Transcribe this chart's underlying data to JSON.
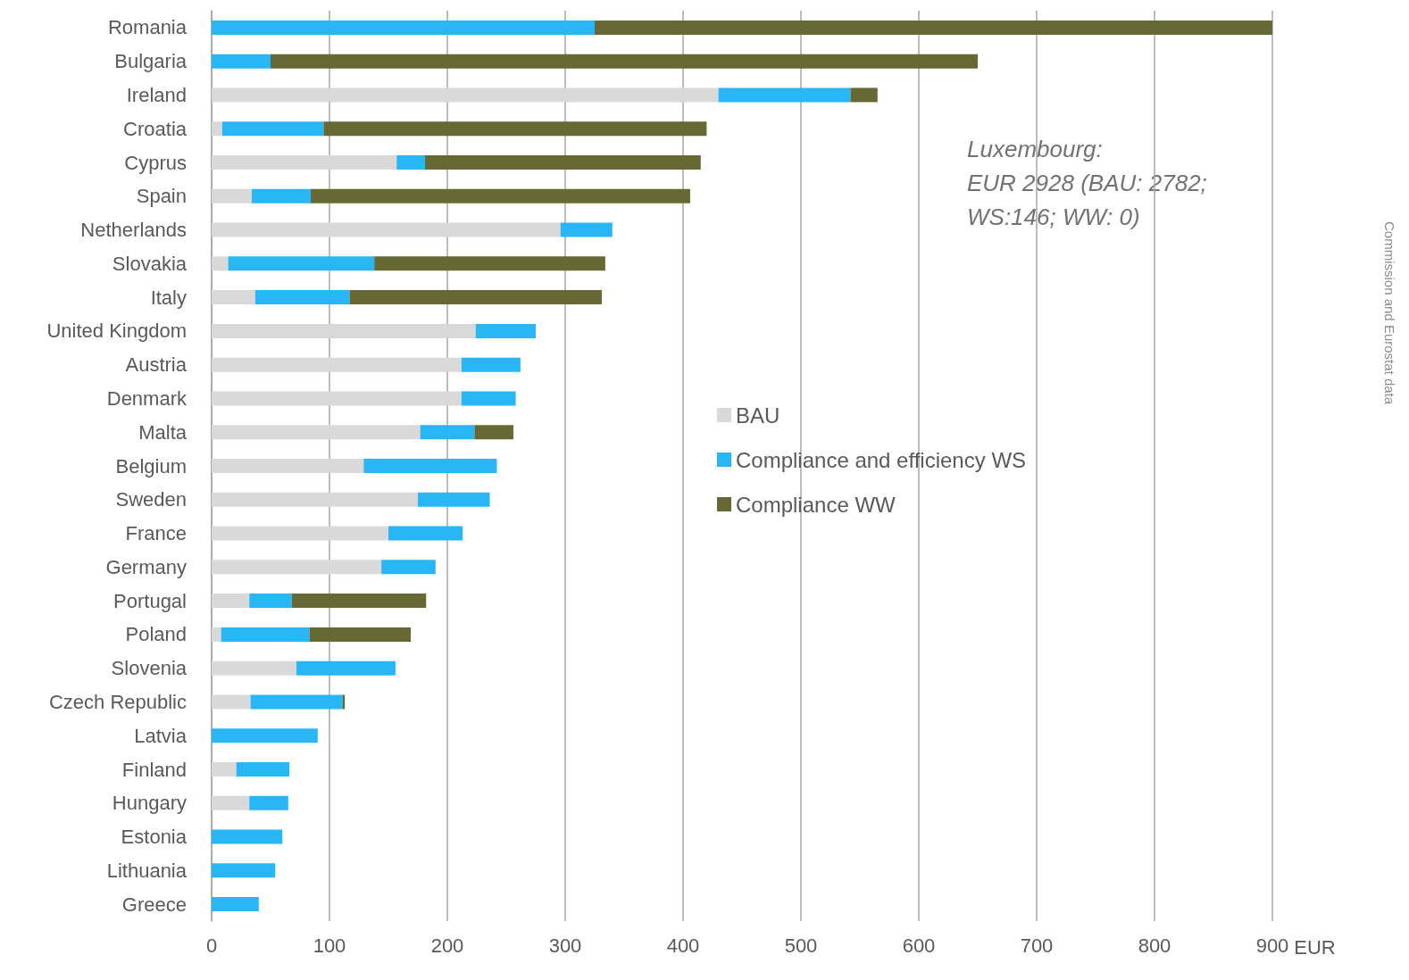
{
  "chart_data": {
    "type": "bar",
    "orientation": "horizontal",
    "stacked": true,
    "xlabel": "EUR",
    "categories": [
      "Romania",
      "Bulgaria",
      "Ireland",
      "Croatia",
      "Cyprus",
      "Spain",
      "Netherlands",
      "Slovakia",
      "Italy",
      "United Kingdom",
      "Austria",
      "Denmark",
      "Malta",
      "Belgium",
      "Sweden",
      "France",
      "Germany",
      "Portugal",
      "Poland",
      "Slovenia",
      "Czech Republic",
      "Latvia",
      "Finland",
      "Hungary",
      "Estonia",
      "Lithuania",
      "Greece"
    ],
    "series": [
      {
        "name": "BAU",
        "color": "#d9d9d9",
        "values": [
          0,
          0,
          430,
          9,
          157,
          34,
          296,
          14,
          37,
          224,
          212,
          212,
          177,
          129,
          175,
          150,
          144,
          32,
          8,
          72,
          33,
          0,
          21,
          32,
          null,
          0,
          0
        ]
      },
      {
        "name": "Compliance and efficiency WS",
        "color": "#29b6f6",
        "values": [
          325,
          50,
          112,
          86,
          24,
          50,
          44,
          124,
          80,
          51,
          50,
          46,
          46,
          113,
          61,
          63,
          46,
          36,
          75,
          84,
          78,
          90,
          45,
          33,
          60,
          54,
          40
        ]
      },
      {
        "name": "Compliance WW",
        "color": "#676833",
        "values": [
          575,
          600,
          23,
          325,
          234,
          322,
          0,
          196,
          214,
          0,
          0,
          0,
          33,
          0,
          0,
          0,
          0,
          114,
          86,
          0,
          2,
          0,
          0,
          0,
          0,
          0,
          0
        ]
      }
    ],
    "xlim": [
      0,
      900
    ],
    "xticks": [
      0,
      100,
      200,
      300,
      400,
      500,
      600,
      700,
      800,
      900
    ],
    "grid": "x",
    "legend": "right",
    "annotations": [
      "Luxembourg:\nEUR 2928 (BAU: 2782;\nWS:146; WW: 0)",
      "Commission and Eurostat data"
    ]
  }
}
